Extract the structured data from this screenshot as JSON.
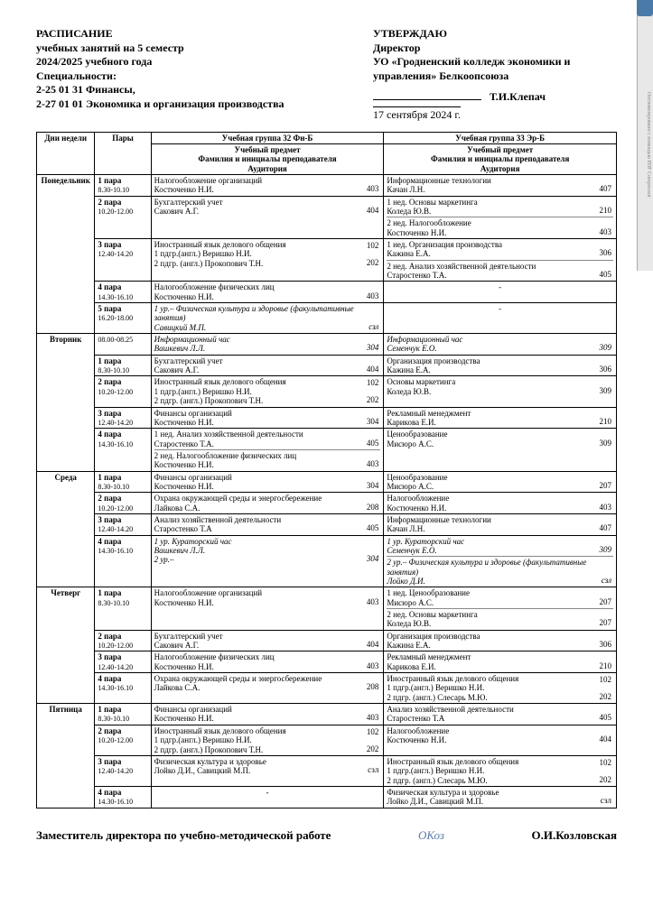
{
  "watermark": "Оптимизировано с помощью PDF Compressor",
  "header": {
    "title": "РАСПИСАНИЕ",
    "line1": "учебных занятий на 5 семестр",
    "line2": "2024/2025 учебного года",
    "line3": "Специальности:",
    "line4": "2-25 01 31 Финансы,",
    "line5": "2-27 01 01  Экономика и организация производства",
    "approve": "УТВЕРЖДАЮ",
    "dir": "Директор",
    "org": "УО «Гродненский колледж экономики и управления» Белкоопсоюза",
    "signer": "Т.И.Клепач",
    "date": "17 сентября 2024 г."
  },
  "cols": {
    "days": "Дни недели",
    "pairs": "Пары",
    "g1": "Учебная группа 32 Фн-Б",
    "g2": "Учебная группа 33 Эр-Б",
    "subj": "Учебный предмет<br>Фамилия и инициалы преподавателя<br>Аудитория"
  },
  "days": [
    "Понедельник",
    "Вторник",
    "Среда",
    "Четверг",
    "Пятница"
  ],
  "pairs": {
    "p0": {
      "n": "",
      "t": "08.00-08.25"
    },
    "p1": {
      "n": "1 пара",
      "t": "8.30-10.10"
    },
    "p2": {
      "n": "2 пара",
      "t": "10.20-12.00"
    },
    "p3": {
      "n": "3 пара",
      "t": "12.40-14.20"
    },
    "p4": {
      "n": "4 пара",
      "t": "14.30-16.10"
    },
    "p5": {
      "n": "5 пара",
      "t": "16.20-18.00"
    }
  },
  "mon": {
    "p1g1": {
      "s": "Налогообложение организаций",
      "t": "Костюченко Н.И.",
      "r": "403"
    },
    "p1g2": {
      "s": "Информационные технологии",
      "t": "Качан Л.Н.",
      "r": "407"
    },
    "p2g1": {
      "s": "Бухгалтерский учет",
      "t": "Сакович А.Г.",
      "r": "404"
    },
    "p2g2a": {
      "s": "1 нед. Основы маркетинга",
      "t": "Коледа Ю.В.",
      "r": "210"
    },
    "p2g2b": {
      "s": "2 нед. Налогообложение",
      "t": "Костюченко Н.И.",
      "r": "403"
    },
    "p3g1": {
      "s": "Иностранный язык делового общения",
      "t1": "1 пдгр.(англ.) Веришко Н.И.",
      "r1": "102",
      "t2": "2 пдгр. (англ.) Прокопович Т.Н.",
      "r2": "202"
    },
    "p3g2a": {
      "s": "1 нед. Организация производства",
      "t": "Кажина Е.А.",
      "r": "306"
    },
    "p3g2b": {
      "s": "2 нед. Анализ хозяйственной деятельности",
      "t": "Старостенко Т.А.",
      "r": "405"
    },
    "p4g1": {
      "s": "Налогообложение физических лиц",
      "t": "Костюченко Н.И.",
      "r": "403"
    },
    "p5g1": {
      "s": "1 ур.–   Физическая культура и здоровье   (факультативные занятия)",
      "t": "Савицкий М.П.",
      "r": "сзл"
    }
  },
  "tue": {
    "p0g1": {
      "s": "Информационный час",
      "t": "Вашкевич Л.Л.",
      "r": "304"
    },
    "p0g2": {
      "s": "Информационный час",
      "t": "Семенчук Е.О.",
      "r": "309"
    },
    "p1g1": {
      "s": "Бухгалтерский учет",
      "t": "Сакович А.Г.",
      "r": "404"
    },
    "p1g2": {
      "s": "Организация производства",
      "t": "Кажина Е.А.",
      "r": "306"
    },
    "p2g1": {
      "s": "Иностранный язык делового общения",
      "t1": "1 пдгр.(англ.) Веришко Н.И.",
      "r1": "102",
      "t2": "2 пдгр. (англ.) Прокопович Т.Н.",
      "r2": "202"
    },
    "p2g2": {
      "s": "Основы маркетинга",
      "t": "Коледа Ю.В.",
      "r": "309"
    },
    "p3g1": {
      "s": "Финансы организаций",
      "t": "Костюченко Н.И.",
      "r": "304"
    },
    "p3g2": {
      "s": "Рекламный менеджмент",
      "t": "Карикова Е.И.",
      "r": "210"
    },
    "p4g1a": {
      "s": "1 нед. Анализ хозяйственной деятельности",
      "t": "Старостенко Т.А.",
      "r": "405"
    },
    "p4g1b": {
      "s": "2 нед. Налогообложение физических лиц",
      "t": "Костюченко Н.И.",
      "r": "403"
    },
    "p4g2": {
      "s": "Ценообразование",
      "t": "Мисюро А.С.",
      "r": "309"
    }
  },
  "wed": {
    "p1g1": {
      "s": "Финансы организаций",
      "t": "Костюченко Н.И.",
      "r": "304"
    },
    "p1g2": {
      "s": "Ценообразование",
      "t": "Мисюро А.С.",
      "r": "207"
    },
    "p2g1": {
      "s": "Охрана окружающей среды и энергосбережение",
      "t": "Лайкова С.А.",
      "r": "208"
    },
    "p2g2": {
      "s": "Налогообложение",
      "t": "Костюченко Н.И.",
      "r": "403"
    },
    "p3g1": {
      "s": "Анализ хозяйственной деятельности",
      "t": "Старостенко Т.А",
      "r": "405"
    },
    "p3g2": {
      "s": "Информационные технологии",
      "t": "Качан Л.Н.",
      "r": "407"
    },
    "p4g1": {
      "s": "1 ур. Кураторский час",
      "t": "Вашкевич Л.Л.",
      "x": "2 ур.–",
      "r": "304"
    },
    "p4g2a": {
      "s": "1 ур. Кураторский час",
      "t": "Семенчук Е.О.",
      "r": "309"
    },
    "p4g2b": {
      "s": "2 ур.– Физическая культура и здоровье (факультативные занятия)",
      "t": "Лойко Д.И.",
      "r": "сзл"
    }
  },
  "thu": {
    "p1g1": {
      "s": "Налогообложение организаций",
      "t": "Костюченко Н.И.",
      "r": "403"
    },
    "p1g2a": {
      "s": "1 нед. Ценообразование",
      "t": "Мисюро А.С.",
      "r": "207"
    },
    "p1g2b": {
      "s": "2 нед. Основы маркетинга",
      "t": "Коледа Ю.В.",
      "r": "207"
    },
    "p2g1": {
      "s": "Бухгалтерский учет",
      "t": "Сакович А.Г.",
      "r": "404"
    },
    "p2g2": {
      "s": "Организация производства",
      "t": "Кажина Е.А.",
      "r": "306"
    },
    "p3g1": {
      "s": "Налогообложение физических лиц",
      "t": "Костюченко Н.И.",
      "r": "403"
    },
    "p3g2": {
      "s": "Рекламный менеджмент",
      "t": "Карикова Е.И.",
      "r": "210"
    },
    "p4g1": {
      "s": "Охрана окружающей среды и энергосбережение",
      "t": "Лайкова С.А.",
      "r": "208"
    },
    "p4g2": {
      "s": "Иностранный язык делового общения",
      "t1": "1 пдгр.(англ.) Веришко Н.И.",
      "r1": "102",
      "t2": "2 пдгр. (англ.) Слесарь М.Ю.",
      "r2": "202"
    }
  },
  "fri": {
    "p1g1": {
      "s": "Финансы организаций",
      "t": "Костюченко Н.И.",
      "r": "403"
    },
    "p1g2": {
      "s": "Анализ хозяйственной деятельности",
      "t": "Старостенко Т.А",
      "r": "405"
    },
    "p2g1": {
      "s": "Иностранный язык делового общения",
      "t1": "1 пдгр.(англ.) Веришко Н.И.",
      "r1": "102",
      "t2": "2 пдгр. (англ.) Прокопович Т.Н.",
      "r2": "202"
    },
    "p2g2": {
      "s": "Налогообложение",
      "t": "Костюченко Н.И.",
      "r": "404"
    },
    "p3g1": {
      "s": "Физическая культура и здоровье",
      "t": "Лойко Д.И., Савицкий М.П.",
      "r": "сзл"
    },
    "p3g2": {
      "s": "Иностранный язык делового общения",
      "t1": "1 пдгр.(англ.) Веришко Н.И.",
      "r1": "102",
      "t2": "2 пдгр. (англ.) Слесарь М.Ю.",
      "r2": "202"
    },
    "p4g2": {
      "s": "Физическая культура и здоровье",
      "t": "Лойко Д.И., Савицкий М.П.",
      "r": "сзл"
    }
  },
  "footer": {
    "role": "Заместитель директора по учебно-методической работе",
    "sig": "ОКоз",
    "name": "О.И.Козловская"
  }
}
